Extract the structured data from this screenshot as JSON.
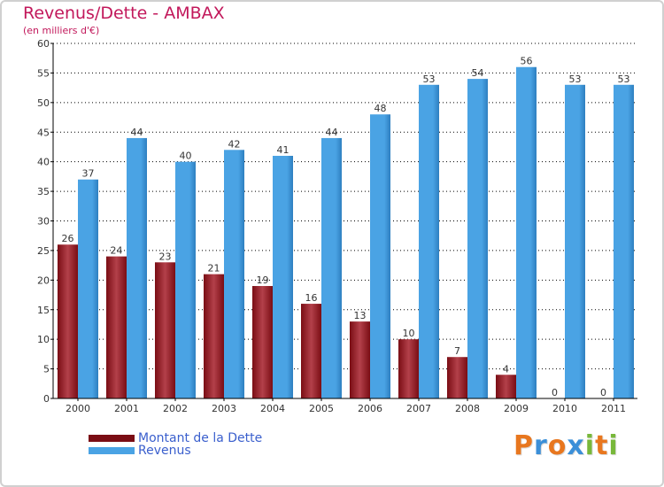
{
  "header": {
    "title": "Revenus/Dette - AMBAX",
    "subtitle": "(en milliers d'€)"
  },
  "legend": {
    "debt_label": "Montant de la Dette",
    "revenue_label": "Revenus"
  },
  "logo": {
    "text": "Proxiti",
    "letters": [
      "P",
      "r",
      "o",
      "x",
      "i",
      "t",
      "i"
    ],
    "colors": [
      "#e8771f",
      "#3b8fd8",
      "#e8771f",
      "#3b8fd8",
      "#78b83a",
      "#e8771f",
      "#78b83a"
    ]
  },
  "colors": {
    "debt": "#7a0d14",
    "debt_light": "#b3404a",
    "revenue": "#4aa3e4",
    "revenue_dark": "#2e7fc0",
    "title": "#c2185b",
    "axis": "#000000",
    "grid": "#000000"
  },
  "chart_data": {
    "type": "bar",
    "title": "Revenus/Dette - AMBAX",
    "ylabel": "(en milliers d'€)",
    "xlabel": "",
    "categories": [
      "2000",
      "2001",
      "2002",
      "2003",
      "2004",
      "2005",
      "2006",
      "2007",
      "2008",
      "2009",
      "2010",
      "2011"
    ],
    "series": [
      {
        "name": "Montant de la Dette",
        "values": [
          26,
          24,
          23,
          21,
          19,
          16,
          13,
          10,
          7,
          4,
          0,
          0
        ]
      },
      {
        "name": "Revenus",
        "values": [
          37,
          44,
          40,
          42,
          41,
          44,
          48,
          53,
          54,
          56,
          53,
          53
        ]
      }
    ],
    "ylim": [
      0,
      60
    ],
    "yticks": [
      0,
      5,
      10,
      15,
      20,
      25,
      30,
      35,
      40,
      45,
      50,
      55,
      60
    ],
    "grid": true,
    "legend": "bottom-left"
  }
}
